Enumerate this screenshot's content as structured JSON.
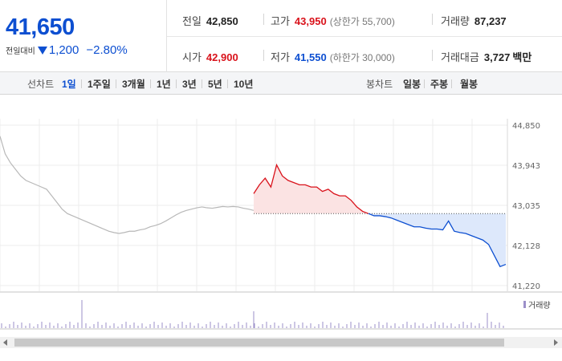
{
  "quote": {
    "current_price": "41,650",
    "change_label": "전일대비",
    "change_amount": "1,200",
    "change_percent": "−2.80%",
    "prev_close": {
      "label": "전일",
      "value": "42,850"
    },
    "high": {
      "label": "고가",
      "value": "43,950",
      "limit_label": "(상한가 55,700)"
    },
    "volume": {
      "label": "거래량",
      "value": "87,237"
    },
    "open": {
      "label": "시가",
      "value": "42,900"
    },
    "low": {
      "label": "저가",
      "value": "41,550",
      "limit_label": "(하한가 30,000)"
    },
    "trade_value": {
      "label": "거래대금",
      "value": "3,727",
      "unit": "백만"
    }
  },
  "tabs": {
    "line_chart_label": "선차트",
    "line_periods": [
      "1일",
      "1주일",
      "3개월",
      "1년",
      "3년",
      "5년",
      "10년"
    ],
    "active_period": "1일",
    "candle_chart_label": "봉차트",
    "candle_periods": [
      "일봉",
      "주봉",
      "월봉"
    ]
  },
  "colors": {
    "up": "#d9121b",
    "down": "#0d4fd1",
    "prev_day_line": "#b8b8b8",
    "volume_bar": "#9b8fc9"
  },
  "chart_data": {
    "type": "line",
    "ylim": [
      41220,
      44850
    ],
    "yticks": [
      44850,
      43943,
      43035,
      42128,
      41220
    ],
    "ytick_labels": [
      "44,850",
      "43,943",
      "43,035",
      "42,128",
      "41,220"
    ],
    "reference_line": 42850,
    "previous_day_series": [
      44600,
      44200,
      44000,
      43850,
      43700,
      43600,
      43550,
      43500,
      43450,
      43400,
      43250,
      43100,
      42950,
      42850,
      42800,
      42750,
      42700,
      42650,
      42600,
      42550,
      42500,
      42450,
      42420,
      42400,
      42420,
      42450,
      42450,
      42480,
      42500,
      42550,
      42580,
      42620,
      42680,
      42750,
      42820,
      42880,
      42920,
      42950,
      42980,
      43000,
      42980,
      42970,
      42990,
      43010,
      43000,
      43010,
      43000,
      42970,
      42950,
      42920
    ],
    "today_series": [
      43300,
      43500,
      43650,
      43450,
      43950,
      43700,
      43600,
      43550,
      43500,
      43500,
      43450,
      43450,
      43350,
      43400,
      43300,
      43250,
      43250,
      43150,
      43000,
      42900,
      42850,
      42800,
      42800,
      42780,
      42750,
      42700,
      42650,
      42600,
      42550,
      42550,
      42520,
      42500,
      42500,
      42480,
      42680,
      42450,
      42420,
      42400,
      42350,
      42300,
      42250,
      42150,
      41900,
      41650,
      41700
    ],
    "volume_legend": "거래량"
  }
}
